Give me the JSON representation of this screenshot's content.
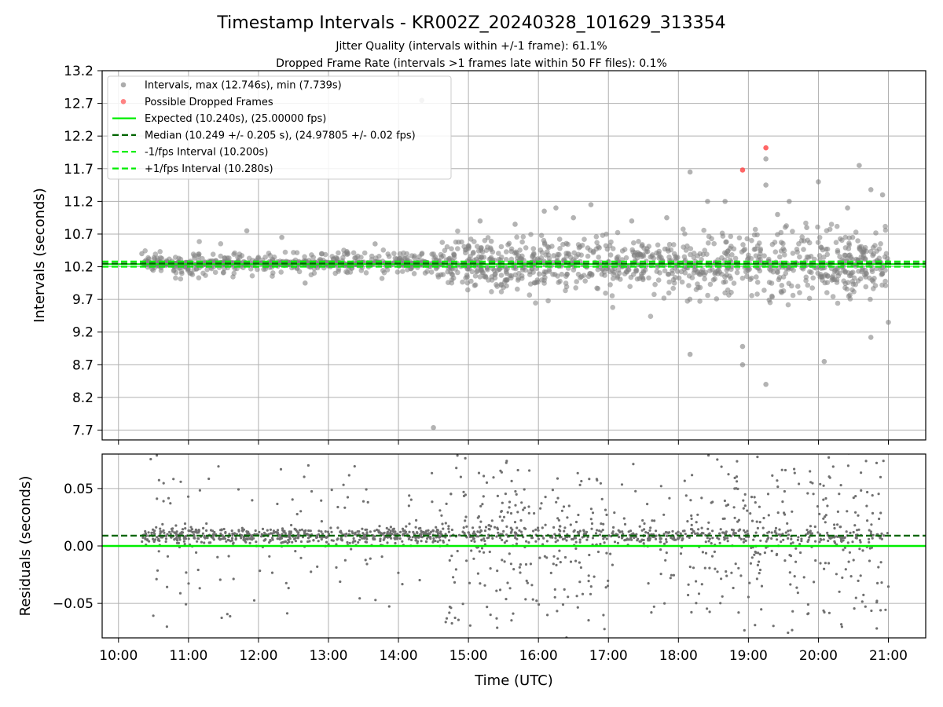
{
  "chart_data": [
    {
      "type": "scatter",
      "title": "Timestamp Intervals - KR002Z_20240328_101629_313354",
      "subtitles": [
        "Jitter Quality (intervals within +/-1 frame): 61.1%",
        "Dropped Frame Rate (intervals >1 frames late within 50 FF files): 0.1%"
      ],
      "xlabel": "",
      "ylabel": "Intervals (seconds)",
      "xlim": [
        "09:46",
        "21:32"
      ],
      "ylim": [
        7.55,
        13.2
      ],
      "yticks": [
        "7.7",
        "8.2",
        "8.7",
        "9.2",
        "9.7",
        "10.2",
        "10.7",
        "11.2",
        "11.7",
        "12.2",
        "12.7",
        "13.2"
      ],
      "grid": true,
      "legend_position": "top-left",
      "legend": [
        {
          "label": "Intervals, max (12.746s), min (7.739s)",
          "style": "marker",
          "color": "#808080"
        },
        {
          "label": "Possible Dropped Frames",
          "style": "marker",
          "color": "#ff4040"
        },
        {
          "label": "Expected (10.240s), (25.00000 fps)",
          "style": "solid",
          "color": "#00ee00"
        },
        {
          "label": "Median (10.249 +/- 0.205 s), (24.97805 +/- 0.02 fps)",
          "style": "dashed",
          "color": "#006400"
        },
        {
          "label": "-1/fps Interval (10.200s)",
          "style": "dashed",
          "color": "#00ee00"
        },
        {
          "label": "+1/fps Interval (10.280s)",
          "style": "dashed",
          "color": "#00ee00"
        }
      ],
      "lines": {
        "expected": 10.24,
        "median": 10.249,
        "minus_fps": 10.2,
        "plus_fps": 10.28
      },
      "series": [
        {
          "name": "Intervals",
          "color": "#808080",
          "x": [
            "10:20",
            "11:50",
            "12:20",
            "12:40",
            "13:40",
            "14:20",
            "14:30",
            "15:10",
            "15:40",
            "16:05",
            "16:15",
            "16:30",
            "16:45",
            "17:20",
            "17:50",
            "18:10",
            "18:10",
            "18:25",
            "18:40",
            "18:55",
            "18:55",
            "19:15",
            "19:15",
            "19:15",
            "19:25",
            "19:35",
            "19:50",
            "20:00",
            "20:05",
            "20:25",
            "20:35",
            "20:45",
            "20:45",
            "20:55",
            "21:00"
          ],
          "y": [
            10.4,
            10.75,
            10.65,
            9.95,
            10.55,
            12.746,
            7.739,
            10.9,
            10.85,
            11.05,
            11.1,
            10.95,
            11.15,
            10.9,
            10.95,
            11.65,
            8.86,
            11.2,
            11.2,
            8.7,
            8.98,
            11.85,
            11.45,
            8.4,
            11.0,
            11.2,
            10.8,
            11.5,
            8.75,
            11.1,
            11.75,
            11.38,
            9.12,
            11.3,
            9.35
          ]
        },
        {
          "name": "Possible Dropped Frames",
          "color": "#ff4040",
          "x": [
            "18:55",
            "19:15"
          ],
          "y": [
            11.68,
            12.02
          ]
        }
      ]
    },
    {
      "type": "scatter",
      "title": "",
      "xlabel": "Time (UTC)",
      "ylabel": "Residuals (seconds)",
      "xlim": [
        "09:46",
        "21:32"
      ],
      "ylim": [
        -0.08,
        0.08
      ],
      "yticks": [
        "−0.05",
        "0.00",
        "0.05"
      ],
      "xticks": [
        "10:00",
        "11:00",
        "12:00",
        "13:00",
        "14:00",
        "15:00",
        "16:00",
        "17:00",
        "18:00",
        "19:00",
        "20:00",
        "21:00"
      ],
      "grid": true,
      "lines": {
        "zero": 0.0,
        "median_offset": 0.009
      },
      "colors": {
        "points": "#707070",
        "zero_line": "#00ee00",
        "median_line": "#006400"
      }
    }
  ]
}
